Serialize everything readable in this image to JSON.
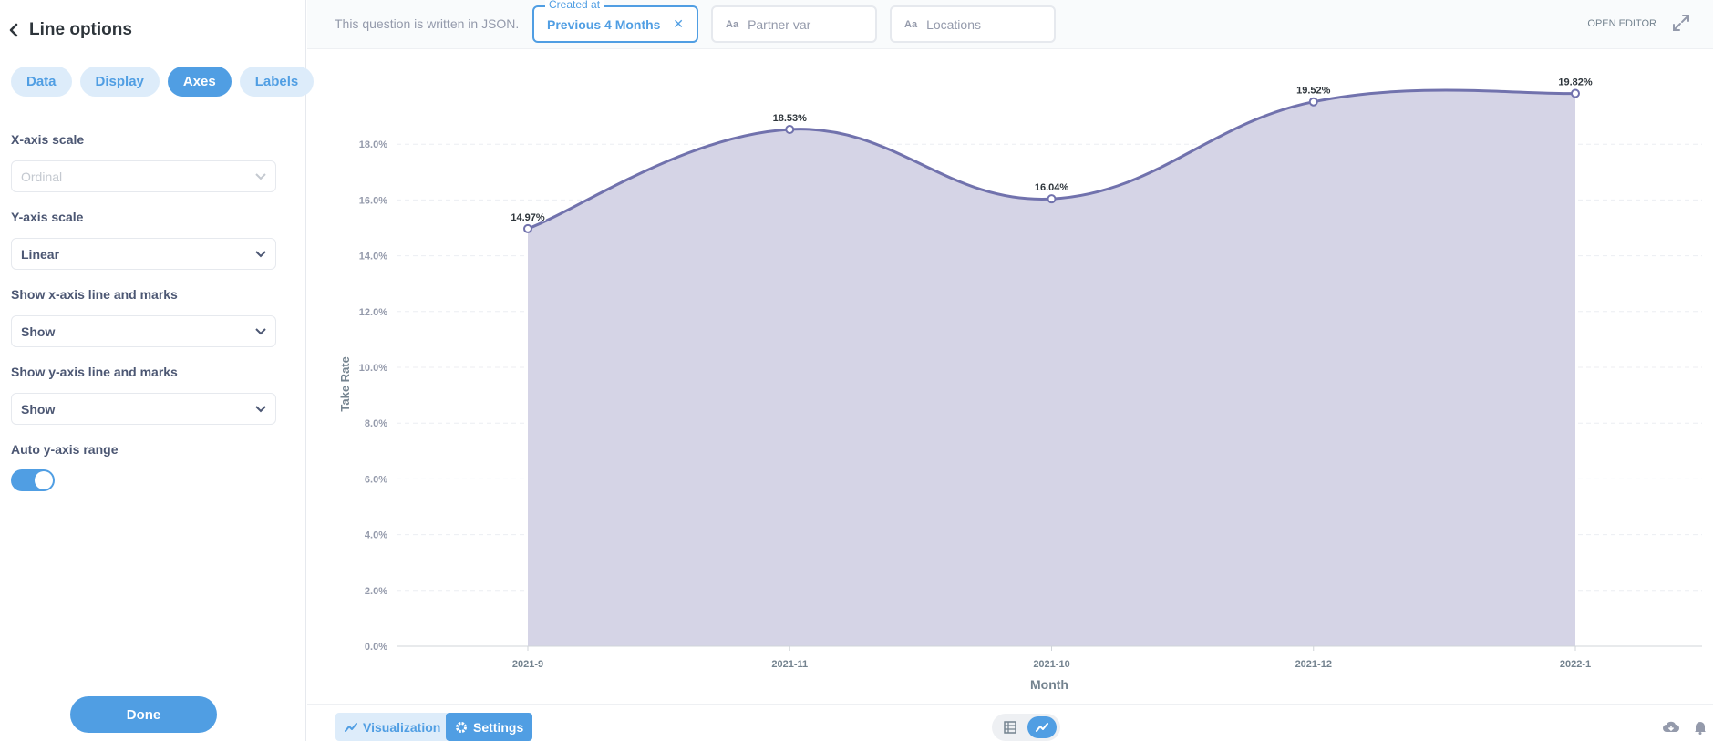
{
  "sidebar": {
    "title": "Line options",
    "tabs": [
      {
        "label": "Data",
        "active": false
      },
      {
        "label": "Display",
        "active": false
      },
      {
        "label": "Axes",
        "active": true
      },
      {
        "label": "Labels",
        "active": false
      }
    ],
    "fields": {
      "x_scale": {
        "label": "X-axis scale",
        "value": "Ordinal",
        "disabled": true
      },
      "y_scale": {
        "label": "Y-axis scale",
        "value": "Linear"
      },
      "x_axis_line": {
        "label": "Show x-axis line and marks",
        "value": "Show"
      },
      "y_axis_line": {
        "label": "Show y-axis line and marks",
        "value": "Show"
      },
      "auto_range": {
        "label": "Auto y-axis range",
        "on": true
      }
    },
    "done_label": "Done"
  },
  "topbar": {
    "json_note": "This question is written in JSON.",
    "filters": [
      {
        "legend": "Created at",
        "value": "Previous 4 Months",
        "active": true
      },
      {
        "icon": "Aa",
        "placeholder": "Partner var"
      },
      {
        "icon": "Aa",
        "placeholder": "Locations"
      }
    ],
    "open_editor": "OPEN EDITOR"
  },
  "bottombar": {
    "visualization_label": "Visualization",
    "settings_label": "Settings"
  },
  "colors": {
    "accent": "#509ee3",
    "line": "#7172ad",
    "area": "#d5d4e6"
  },
  "chart_data": {
    "type": "area",
    "categories": [
      "2021-9",
      "2021-11",
      "2021-10",
      "2021-12",
      "2022-1"
    ],
    "values": [
      14.97,
      18.53,
      16.04,
      19.52,
      19.82
    ],
    "data_labels": [
      "14.97%",
      "18.53%",
      "16.04%",
      "19.52%",
      "19.82%"
    ],
    "y_ticks": [
      "0.0%",
      "2.0%",
      "4.0%",
      "6.0%",
      "8.0%",
      "10.0%",
      "12.0%",
      "14.0%",
      "16.0%",
      "18.0%"
    ],
    "ylim": [
      0,
      18
    ],
    "xlabel": "Month",
    "ylabel": "Take Rate",
    "grid": true
  }
}
